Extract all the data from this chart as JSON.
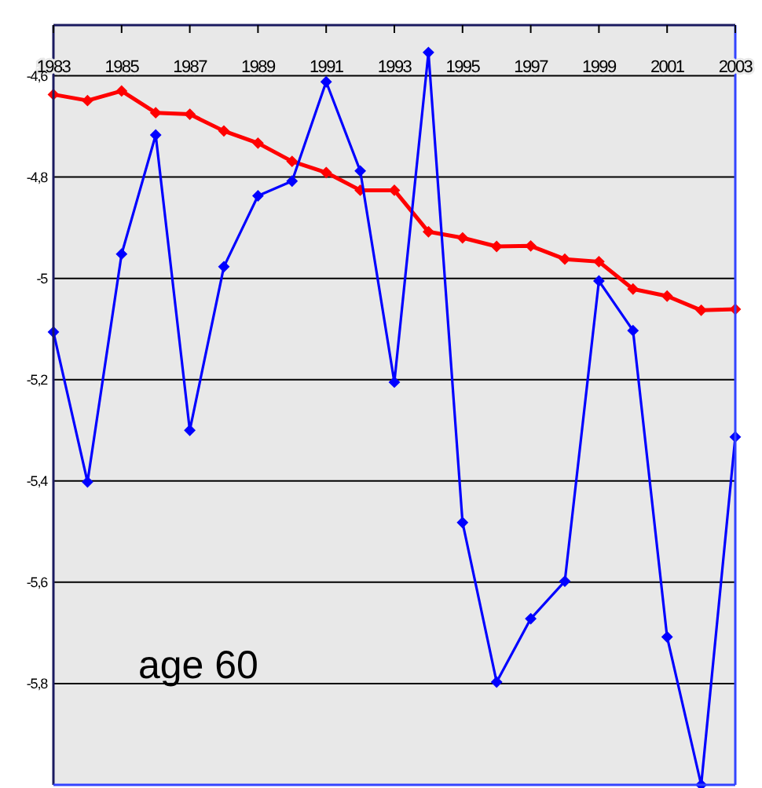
{
  "chart_data": {
    "type": "line",
    "x": [
      1983,
      1984,
      1985,
      1986,
      1987,
      1988,
      1989,
      1990,
      1991,
      1992,
      1993,
      1994,
      1995,
      1996,
      1997,
      1998,
      1999,
      2000,
      2001,
      2002,
      2003
    ],
    "series": [
      {
        "color": "#ff0000",
        "values": [
          -4.637,
          -4.649,
          -4.63,
          -4.673,
          -4.676,
          -4.709,
          -4.733,
          -4.769,
          -4.791,
          -4.826,
          -4.826,
          -4.908,
          -4.92,
          -4.937,
          -4.936,
          -4.962,
          -4.967,
          -5.021,
          -5.035,
          -5.063,
          -5.061
        ]
      },
      {
        "color": "#0000ff",
        "values": [
          -5.106,
          -5.402,
          -4.952,
          -4.717,
          -5.3,
          -4.977,
          -4.837,
          -4.808,
          -4.612,
          -4.788,
          -5.205,
          -4.554,
          -5.482,
          -5.797,
          -5.672,
          -5.598,
          -5.005,
          -5.103,
          -5.708,
          -6.0,
          -5.313
        ]
      }
    ],
    "xlim": [
      1983,
      2003
    ],
    "xticks": [
      1983,
      1985,
      1987,
      1989,
      1991,
      1993,
      1995,
      1997,
      1999,
      2001,
      2003
    ],
    "ylim": [
      -6,
      -4.5
    ],
    "yticks": [
      {
        "value": -4.6,
        "label": "-4,6"
      },
      {
        "value": -4.8,
        "label": "-4,8"
      },
      -5,
      {
        "value": -5.2,
        "label": "-5,2"
      },
      {
        "value": -5.4,
        "label": "-5,4"
      },
      {
        "value": -5.6,
        "label": "-5,6"
      },
      {
        "value": -5.8,
        "label": "-5,8"
      }
    ],
    "grid": "y",
    "marker": "diamond",
    "line_style": "solid",
    "annotations": [
      "age 60"
    ]
  }
}
